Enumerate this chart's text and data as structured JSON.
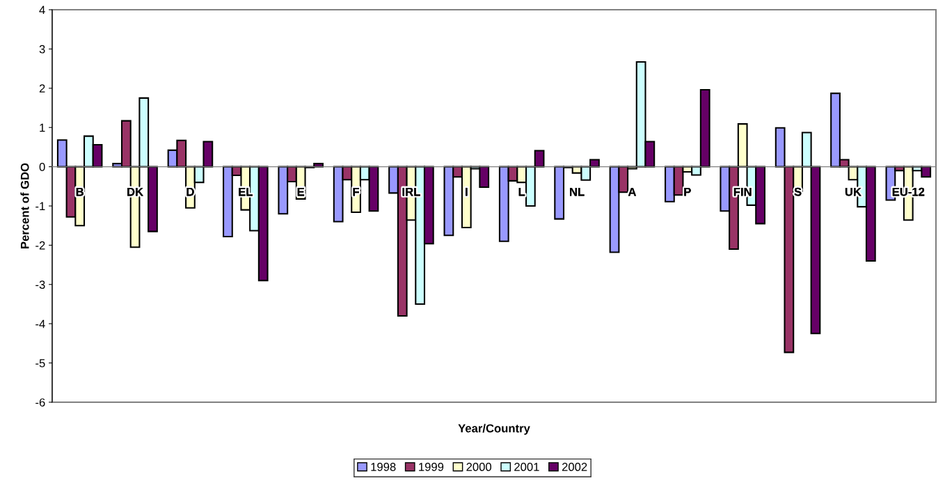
{
  "chart_data": {
    "type": "bar",
    "xlabel": "Year/Country",
    "ylabel": "Percent of GDO",
    "categories": [
      "B",
      "DK",
      "D",
      "EL",
      "E",
      "F",
      "IRL",
      "I",
      "L",
      "NL",
      "A",
      "P",
      "FIN",
      "S",
      "UK",
      "EU-12"
    ],
    "series": [
      {
        "name": "1998",
        "color": "#9999ff",
        "values": [
          0.68,
          0.08,
          0.42,
          -1.78,
          -1.2,
          -1.4,
          -0.67,
          -1.75,
          -1.9,
          -1.33,
          -2.18,
          -0.89,
          -1.13,
          0.99,
          1.87,
          -0.85
        ]
      },
      {
        "name": "1999",
        "color": "#993366",
        "values": [
          -1.28,
          1.17,
          0.67,
          -0.22,
          -0.38,
          -0.33,
          -3.8,
          -0.26,
          -0.36,
          -0.02,
          -0.65,
          -0.72,
          -2.1,
          -4.73,
          0.18,
          -0.1
        ]
      },
      {
        "name": "2000",
        "color": "#ffffcc",
        "values": [
          -1.5,
          -2.05,
          -1.05,
          -1.1,
          -0.82,
          -1.16,
          -1.36,
          -1.55,
          -0.4,
          -0.16,
          -0.05,
          -0.13,
          1.09,
          -0.62,
          -0.33,
          -1.36
        ]
      },
      {
        "name": "2001",
        "color": "#ccffff",
        "values": [
          0.78,
          1.75,
          -0.4,
          -1.63,
          -0.02,
          -0.33,
          -3.5,
          -0.05,
          -1.0,
          -0.34,
          2.67,
          -0.21,
          -0.98,
          0.87,
          -1.02,
          -0.1
        ]
      },
      {
        "name": "2002",
        "color": "#660066",
        "values": [
          0.56,
          -1.65,
          0.64,
          -2.9,
          0.08,
          -1.13,
          -1.96,
          -0.52,
          0.41,
          0.18,
          0.64,
          1.96,
          -1.45,
          -4.25,
          -2.4,
          -0.26
        ]
      }
    ],
    "ylim": [
      -6,
      4
    ],
    "yticks": [
      -6,
      -5,
      -4,
      -3,
      -2,
      -1,
      0,
      1,
      2,
      3,
      4
    ],
    "grid": false,
    "legend": "bottom"
  }
}
